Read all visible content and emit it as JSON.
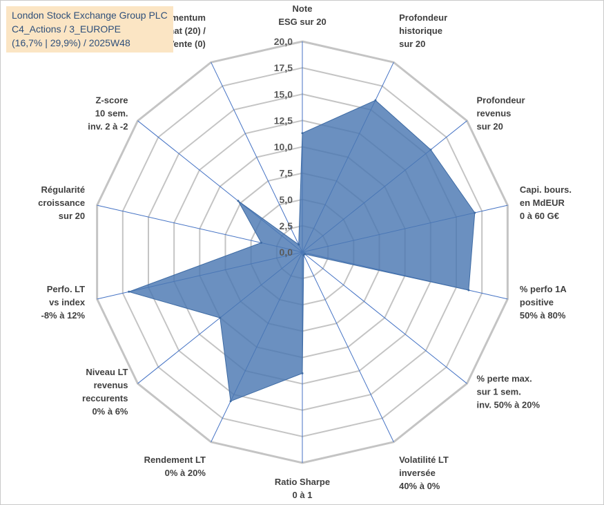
{
  "title": {
    "line1": "London Stock Exchange Group PLC",
    "line2": "C4_Actions / 3_EUROPE",
    "line3": "(16,7% | 29,9%) / 2025W48"
  },
  "chart_data": {
    "type": "radar",
    "rmin": 0,
    "rmax": 20,
    "ticks": [
      "0,0",
      "2,5",
      "5,0",
      "7,5",
      "10,0",
      "12,5",
      "15,0",
      "17,5",
      "20,0"
    ],
    "categories": [
      [
        "Note",
        "ESG sur 20"
      ],
      [
        "Profondeur",
        "historique",
        "sur 20"
      ],
      [
        "Profondeur",
        "revenus",
        "sur 20"
      ],
      [
        "Capi. bours.",
        "en MdEUR",
        "0 à 60 G€"
      ],
      [
        "% perfo 1A",
        "positive",
        "50% à 80%"
      ],
      [
        "% perte max.",
        "sur 1 sem.",
        "inv. 50% à 20%"
      ],
      [
        "Volatilité LT",
        "inversée",
        "40% à 0%"
      ],
      [
        "Ratio Sharpe",
        "0 à 1"
      ],
      [
        "Rendement LT",
        "0% à 20%"
      ],
      [
        "Niveau LT",
        "revenus",
        "reccurents",
        "0% à 6%"
      ],
      [
        "Perfo. LT",
        "vs index",
        "-8% à 12%"
      ],
      [
        "Régularité",
        "croissance",
        "sur 20"
      ],
      [
        "Z-score",
        "10 sem.",
        "inv. 2 à -2"
      ],
      [
        "Momentum",
        "Achat (20) /",
        "Vente (0)"
      ]
    ],
    "values": [
      11.3,
      16.0,
      15.6,
      16.8,
      16.2,
      0.3,
      0.3,
      11.5,
      15.7,
      10.0,
      16.9,
      4.0,
      7.8,
      0.8
    ],
    "grid": true,
    "legend": "none",
    "colors": {
      "fill": "#4a78b2",
      "grid": "#c4c4c4",
      "axis": "#4472c4"
    }
  }
}
